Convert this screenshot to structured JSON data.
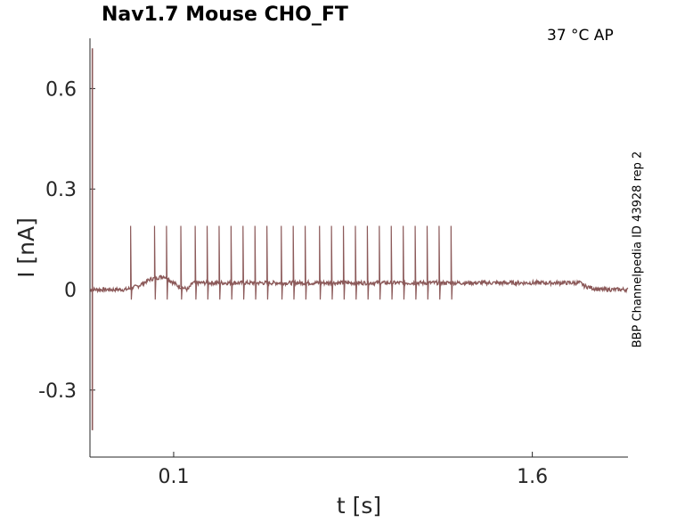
{
  "chart_data": {
    "type": "line",
    "title": "Nav1.7  Mouse  CHO_FT",
    "corner_label": "37 °C  AP",
    "side_label": "BBP Channelpedia ID 43928 rep 2",
    "xlabel": "t [s]",
    "ylabel": "I [nA]",
    "xlim": [
      -0.25,
      2.0
    ],
    "ylim": [
      -0.5,
      0.75
    ],
    "xticks": [
      0.1,
      1.6
    ],
    "xtick_labels": [
      "0.1",
      "1.6"
    ],
    "yticks": [
      0.6,
      0.3,
      0,
      -0.3
    ],
    "ytick_labels": [
      "0.6",
      "0.3",
      "0",
      "-0.3"
    ],
    "grid": false,
    "line_color": "#8c5a5a",
    "series": [
      {
        "baseline": [
          [
            -0.25,
            0.0
          ],
          [
            -0.1,
            0.0
          ],
          [
            -0.05,
            0.01
          ],
          [
            0.0,
            0.03
          ],
          [
            0.06,
            0.04
          ],
          [
            0.12,
            0.01
          ],
          [
            0.16,
            0.0
          ],
          [
            0.18,
            0.02
          ],
          [
            1.8,
            0.02
          ],
          [
            1.82,
            0.01
          ],
          [
            1.88,
            0.0
          ],
          [
            2.0,
            0.0
          ]
        ],
        "spike_times": [
          -0.08,
          0.02,
          0.07,
          0.13,
          0.19,
          0.24,
          0.29,
          0.34,
          0.39,
          0.44,
          0.49,
          0.55,
          0.6,
          0.65,
          0.71,
          0.76,
          0.81,
          0.86,
          0.91,
          0.96,
          1.01,
          1.06,
          1.11,
          1.16,
          1.21,
          1.26
        ],
        "spike_peak": 0.19,
        "spike_trough": -0.03,
        "transient_x": -0.24,
        "transient_peak": 0.72,
        "transient_trough": -0.42
      }
    ]
  }
}
